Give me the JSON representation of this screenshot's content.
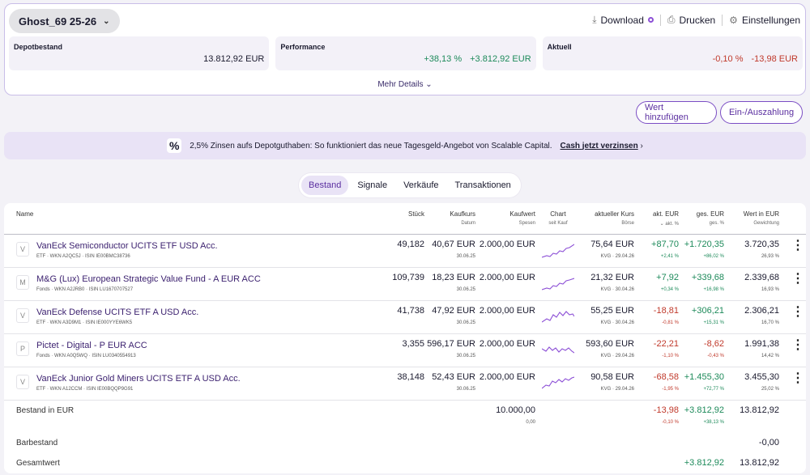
{
  "header": {
    "portfolio_name": "Ghost_69 25-26",
    "download_label": "Download",
    "print_label": "Drucken",
    "settings_label": "Einstellungen"
  },
  "kpis": [
    {
      "label": "Depotbestand",
      "v1": "13.812,92 EUR",
      "v2": ""
    },
    {
      "label": "Performance",
      "v1": "+38,13 %",
      "v2": "+3.812,92 EUR"
    },
    {
      "label": "Aktuell",
      "v1": "-0,10 %",
      "v2": "-13,98 EUR"
    }
  ],
  "more_details": "Mehr Details",
  "buttons": {
    "add_value": "Wert hinzufügen",
    "deposit": "Ein-/Auszahlung"
  },
  "banner": {
    "icon": "%",
    "text": "2,5% Zinsen aufs Depotguthaben: So funktioniert das neue Tagesgeld-Angebot von Scalable Capital.",
    "link": "Cash jetzt verzinsen"
  },
  "tabs": [
    "Bestand",
    "Signale",
    "Verkäufe",
    "Transaktionen"
  ],
  "columns": {
    "name": "Name",
    "stueck": "Stück",
    "kaufkurs": "Kaufkurs",
    "kaufkurs_sub": "Datum",
    "kaufwert": "Kaufwert",
    "kaufwert_sub": "Spesen",
    "chart": "Chart",
    "chart_sub": "seit Kauf",
    "kurs": "aktueller Kurs",
    "kurs_sub": "Börse",
    "akt": "akt. EUR",
    "akt_sub": "akt. %",
    "ges": "ges. EUR",
    "ges_sub": "ges. %",
    "wert": "Wert in EUR",
    "wert_sub": "Gewichtung"
  },
  "positions": [
    {
      "initial": "V",
      "name": "VanEck Semiconductor UCITS ETF USD Acc.",
      "meta": "ETF · WKN A2QC5J · ISIN IE00BMC38736",
      "stueck": "49,182",
      "kaufkurs": "40,67 EUR",
      "datum": "30.06.25",
      "kaufwert": "2.000,00 EUR",
      "kurs": "75,64 EUR",
      "boerse": "KVG · 29.04.26",
      "akt_eur": "+87,70",
      "akt_pct": "+2,41 %",
      "ges_eur": "+1.720,35",
      "ges_pct": "+86,02 %",
      "wert": "3.720,35",
      "gewichtung": "26,93 %",
      "akt_sign": "pos",
      "ges_sign": "pos"
    },
    {
      "initial": "M",
      "name": "M&G (Lux) European Strategic Value Fund - A EUR ACC",
      "meta": "Fonds · WKN A2JRB0 · ISIN LU1670707527",
      "stueck": "109,739",
      "kaufkurs": "18,23 EUR",
      "datum": "30.06.25",
      "kaufwert": "2.000,00 EUR",
      "kurs": "21,32 EUR",
      "boerse": "KVG · 30.04.26",
      "akt_eur": "+7,92",
      "akt_pct": "+0,34 %",
      "ges_eur": "+339,68",
      "ges_pct": "+16,98 %",
      "wert": "2.339,68",
      "gewichtung": "16,93 %",
      "akt_sign": "pos",
      "ges_sign": "pos"
    },
    {
      "initial": "V",
      "name": "VanEck Defense UCITS ETF A USD Acc.",
      "meta": "ETF · WKN A3D9M1 · ISIN IE000YYE6WK5",
      "stueck": "41,738",
      "kaufkurs": "47,92 EUR",
      "datum": "30.06.25",
      "kaufwert": "2.000,00 EUR",
      "kurs": "55,25 EUR",
      "boerse": "KVG · 30.04.26",
      "akt_eur": "-18,81",
      "akt_pct": "-0,81 %",
      "ges_eur": "+306,21",
      "ges_pct": "+15,31 %",
      "wert": "2.306,21",
      "gewichtung": "16,70 %",
      "akt_sign": "neg",
      "ges_sign": "pos"
    },
    {
      "initial": "P",
      "name": "Pictet - Digital - P EUR ACC",
      "meta": "Fonds · WKN A0Q5WQ · ISIN LU0340554913",
      "stueck": "3,355",
      "kaufkurs": "596,17 EUR",
      "datum": "30.06.25",
      "kaufwert": "2.000,00 EUR",
      "kurs": "593,60 EUR",
      "boerse": "KVG · 29.04.26",
      "akt_eur": "-22,21",
      "akt_pct": "-1,10 %",
      "ges_eur": "-8,62",
      "ges_pct": "-0,43 %",
      "wert": "1.991,38",
      "gewichtung": "14,42 %",
      "akt_sign": "neg",
      "ges_sign": "neg"
    },
    {
      "initial": "V",
      "name": "VanEck Junior Gold Miners UCITS ETF A USD Acc.",
      "meta": "ETF · WKN A12CCM · ISIN IE00BQQP9G91",
      "stueck": "38,148",
      "kaufkurs": "52,43 EUR",
      "datum": "30.06.25",
      "kaufwert": "2.000,00 EUR",
      "kurs": "90,58 EUR",
      "boerse": "KVG · 29.04.26",
      "akt_eur": "-68,58",
      "akt_pct": "-1,95 %",
      "ges_eur": "+1.455,30",
      "ges_pct": "+72,77 %",
      "wert": "3.455,30",
      "gewichtung": "25,02 %",
      "akt_sign": "neg",
      "ges_sign": "pos"
    }
  ],
  "summary": {
    "bestand_label": "Bestand in EUR",
    "bestand_kaufwert": "10.000,00",
    "bestand_spesen": "0,00",
    "bestand_akt": "-13,98",
    "bestand_akt_pct": "-0,10 %",
    "bestand_ges": "+3.812,92",
    "bestand_ges_pct": "+38,13 %",
    "bestand_wert": "13.812,92",
    "barbestand_label": "Barbestand",
    "barbestand_wert": "-0,00",
    "gesamt_label": "Gesamtwert",
    "gesamt_ges": "+3.812,92",
    "gesamt_wert": "13.812,92"
  },
  "colors": {
    "accent": "#7b4dc4",
    "positive": "#1d8a5a",
    "negative": "#c0392b",
    "spark": "#8c4fd6"
  }
}
